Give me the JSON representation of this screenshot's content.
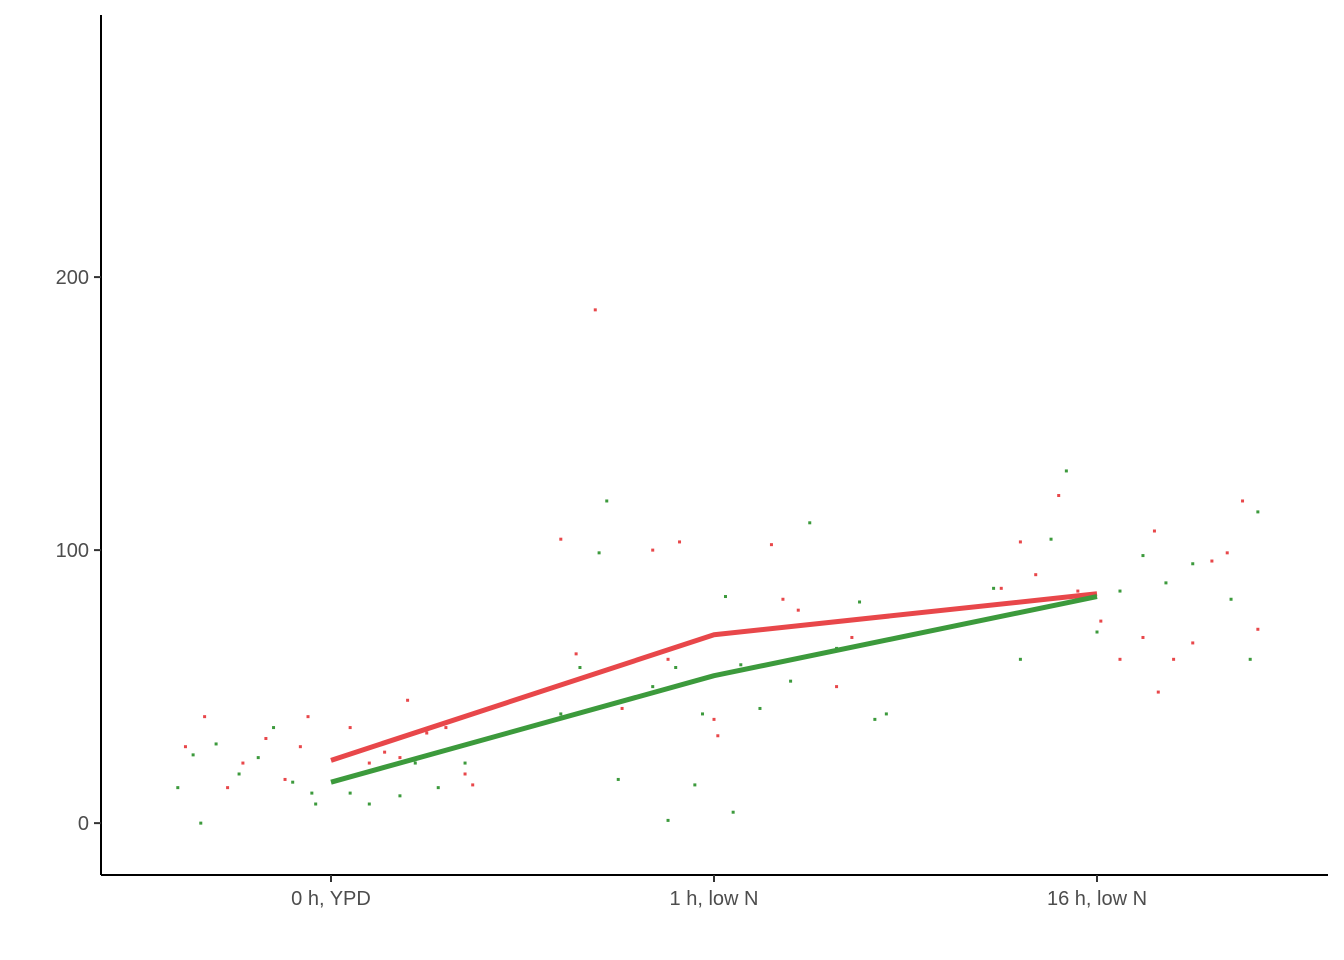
{
  "chart_data": {
    "type": "line",
    "title": "",
    "xlabel": "",
    "ylabel": "",
    "categories": [
      "0 h, YPD",
      "1 h, low N",
      "16 h, low N"
    ],
    "ylim": [
      -19,
      296
    ],
    "yticks": [
      0,
      100,
      200
    ],
    "grid": false,
    "legend": "none",
    "series": [
      {
        "color": "#e8474a",
        "values": [
          23,
          69,
          84
        ]
      },
      {
        "color": "#3c9a3c",
        "values": [
          15,
          54,
          83
        ]
      }
    ],
    "points": [
      {
        "series": 0,
        "data": [
          [
            -0.38,
            28
          ],
          [
            -0.33,
            39
          ],
          [
            -0.27,
            13
          ],
          [
            -0.23,
            22
          ],
          [
            -0.17,
            31
          ],
          [
            -0.12,
            16
          ],
          [
            -0.08,
            28
          ],
          [
            -0.06,
            39
          ],
          [
            0.05,
            35
          ],
          [
            0.1,
            22
          ],
          [
            0.14,
            26
          ],
          [
            0.18,
            24
          ],
          [
            0.2,
            45
          ],
          [
            0.25,
            33
          ],
          [
            0.3,
            35
          ],
          [
            0.35,
            18
          ],
          [
            0.37,
            14
          ],
          [
            0.6,
            104
          ],
          [
            0.64,
            62
          ],
          [
            0.69,
            188
          ],
          [
            0.76,
            42
          ],
          [
            0.84,
            100
          ],
          [
            0.88,
            60
          ],
          [
            0.91,
            103
          ],
          [
            1.0,
            38
          ],
          [
            1.01,
            32
          ],
          [
            1.05,
            70
          ],
          [
            1.15,
            102
          ],
          [
            1.18,
            82
          ],
          [
            1.22,
            78
          ],
          [
            1.32,
            50
          ],
          [
            1.36,
            68
          ],
          [
            1.75,
            86
          ],
          [
            1.8,
            103
          ],
          [
            1.84,
            91
          ],
          [
            1.9,
            120
          ],
          [
            1.95,
            85
          ],
          [
            2.01,
            74
          ],
          [
            2.06,
            60
          ],
          [
            2.12,
            68
          ],
          [
            2.15,
            107
          ],
          [
            2.16,
            48
          ],
          [
            2.2,
            60
          ],
          [
            2.25,
            66
          ],
          [
            2.3,
            96
          ],
          [
            2.34,
            99
          ],
          [
            2.38,
            118
          ],
          [
            2.42,
            71
          ]
        ]
      },
      {
        "series": 1,
        "data": [
          [
            -0.4,
            13
          ],
          [
            -0.36,
            25
          ],
          [
            -0.34,
            0
          ],
          [
            -0.3,
            29
          ],
          [
            -0.24,
            18
          ],
          [
            -0.19,
            24
          ],
          [
            -0.15,
            35
          ],
          [
            -0.1,
            15
          ],
          [
            -0.05,
            11
          ],
          [
            -0.04,
            7
          ],
          [
            0.05,
            11
          ],
          [
            0.08,
            18
          ],
          [
            0.1,
            7
          ],
          [
            0.15,
            30
          ],
          [
            0.18,
            10
          ],
          [
            0.22,
            22
          ],
          [
            0.28,
            13
          ],
          [
            0.35,
            22
          ],
          [
            0.6,
            40
          ],
          [
            0.65,
            57
          ],
          [
            0.7,
            99
          ],
          [
            0.72,
            118
          ],
          [
            0.75,
            16
          ],
          [
            0.84,
            50
          ],
          [
            0.88,
            1
          ],
          [
            0.9,
            57
          ],
          [
            0.95,
            14
          ],
          [
            0.97,
            40
          ],
          [
            1.03,
            83
          ],
          [
            1.05,
            4
          ],
          [
            1.07,
            58
          ],
          [
            1.12,
            42
          ],
          [
            1.2,
            52
          ],
          [
            1.25,
            110
          ],
          [
            1.32,
            64
          ],
          [
            1.38,
            81
          ],
          [
            1.42,
            38
          ],
          [
            1.45,
            40
          ],
          [
            1.73,
            86
          ],
          [
            1.8,
            60
          ],
          [
            1.88,
            104
          ],
          [
            1.92,
            129
          ],
          [
            2.0,
            70
          ],
          [
            2.06,
            85
          ],
          [
            2.12,
            98
          ],
          [
            2.18,
            88
          ],
          [
            2.25,
            95
          ],
          [
            2.35,
            82
          ],
          [
            2.4,
            60
          ],
          [
            2.42,
            114
          ]
        ]
      }
    ]
  }
}
